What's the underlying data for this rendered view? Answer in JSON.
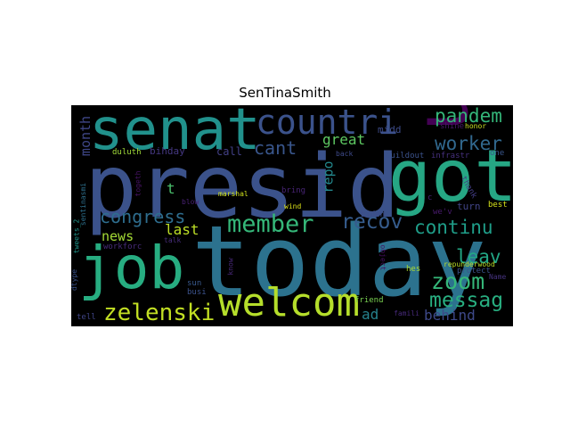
{
  "figure": {
    "title": "SenTinaSmith"
  },
  "wordcloud": {
    "background": "#000000",
    "words": [
      {
        "text": "presid",
        "color": "#3b528b"
      },
      {
        "text": "today",
        "color": "#2c728e"
      },
      {
        "text": "got",
        "color": "#26a784"
      },
      {
        "text": "senat",
        "color": "#21918c"
      },
      {
        "text": "job",
        "color": "#27ad81"
      },
      {
        "text": "welcom",
        "color": "#b5de2b"
      },
      {
        "text": "countri",
        "color": "#3b528b"
      },
      {
        "text": "u",
        "color": "#440154"
      },
      {
        "text": "zelenski",
        "color": "#c2df23"
      },
      {
        "text": "member",
        "color": "#35b779"
      },
      {
        "text": "zoom",
        "color": "#35b779"
      },
      {
        "text": "congress",
        "color": "#2e6d8e"
      },
      {
        "text": "continu",
        "color": "#1f9e89"
      },
      {
        "text": "messag",
        "color": "#28ae80"
      },
      {
        "text": "recov",
        "color": "#365c8d"
      },
      {
        "text": "pandem",
        "color": "#34b679"
      },
      {
        "text": "worker",
        "color": "#31688e"
      },
      {
        "text": "leav",
        "color": "#22a785"
      },
      {
        "text": "cant",
        "color": "#39568c"
      },
      {
        "text": "behind",
        "color": "#3e4989"
      },
      {
        "text": "great",
        "color": "#5ec962"
      },
      {
        "text": "month",
        "color": "#3f4788"
      },
      {
        "text": "news",
        "color": "#a5db36"
      },
      {
        "text": "last",
        "color": "#bddf26"
      },
      {
        "text": "ad",
        "color": "#26828e"
      },
      {
        "text": "repo",
        "color": "#23898e"
      },
      {
        "text": "t",
        "color": "#4ac16d"
      },
      {
        "text": "midd",
        "color": "#3e4c8a"
      },
      {
        "text": "call",
        "color": "#424086"
      },
      {
        "text": "bihday",
        "color": "#453882"
      },
      {
        "text": "turn",
        "color": "#414487"
      },
      {
        "text": "friend",
        "color": "#7ad151"
      },
      {
        "text": "marshal",
        "color": "#d0e11c"
      },
      {
        "text": "duluth",
        "color": "#a0da39"
      },
      {
        "text": "togeth",
        "color": "#471365"
      },
      {
        "text": "tweets_2",
        "color": "#1f958b"
      },
      {
        "text": "sentinasmi",
        "color": "#2d708e"
      },
      {
        "text": "workforc",
        "color": "#472c7a"
      },
      {
        "text": "buildout",
        "color": "#3b528b"
      },
      {
        "text": "infrastr",
        "color": "#46307e"
      },
      {
        "text": "back",
        "color": "#3e4a89"
      },
      {
        "text": "one",
        "color": "#39568c"
      },
      {
        "text": "shine",
        "color": "#48186a"
      },
      {
        "text": "honor",
        "color": "#c8e020"
      },
      {
        "text": "thank",
        "color": "#433e85"
      },
      {
        "text": "best",
        "color": "#d5e21a"
      },
      {
        "text": "wind",
        "color": "#dde318"
      },
      {
        "text": "bring",
        "color": "#482475"
      },
      {
        "text": "biden",
        "color": "#3d4e8a"
      },
      {
        "text": "we'v",
        "color": "#481b6d"
      },
      {
        "text": "c",
        "color": "#482071"
      },
      {
        "text": "blow",
        "color": "#482173"
      },
      {
        "text": "talk",
        "color": "#472d7b"
      },
      {
        "text": "hes",
        "color": "#addc30"
      },
      {
        "text": "protect",
        "color": "#3b528b"
      },
      {
        "text": "repunderwood",
        "color": "#bade28"
      },
      {
        "text": "know",
        "color": "#482878"
      },
      {
        "text": "object",
        "color": "#471063"
      },
      {
        "text": "sun",
        "color": "#38588c"
      },
      {
        "text": "busi",
        "color": "#3b528b"
      },
      {
        "text": "famili",
        "color": "#472a7a"
      },
      {
        "text": "tell",
        "color": "#404588"
      },
      {
        "text": "dtype",
        "color": "#3a538b"
      },
      {
        "text": "Name",
        "color": "#46337f"
      }
    ]
  }
}
